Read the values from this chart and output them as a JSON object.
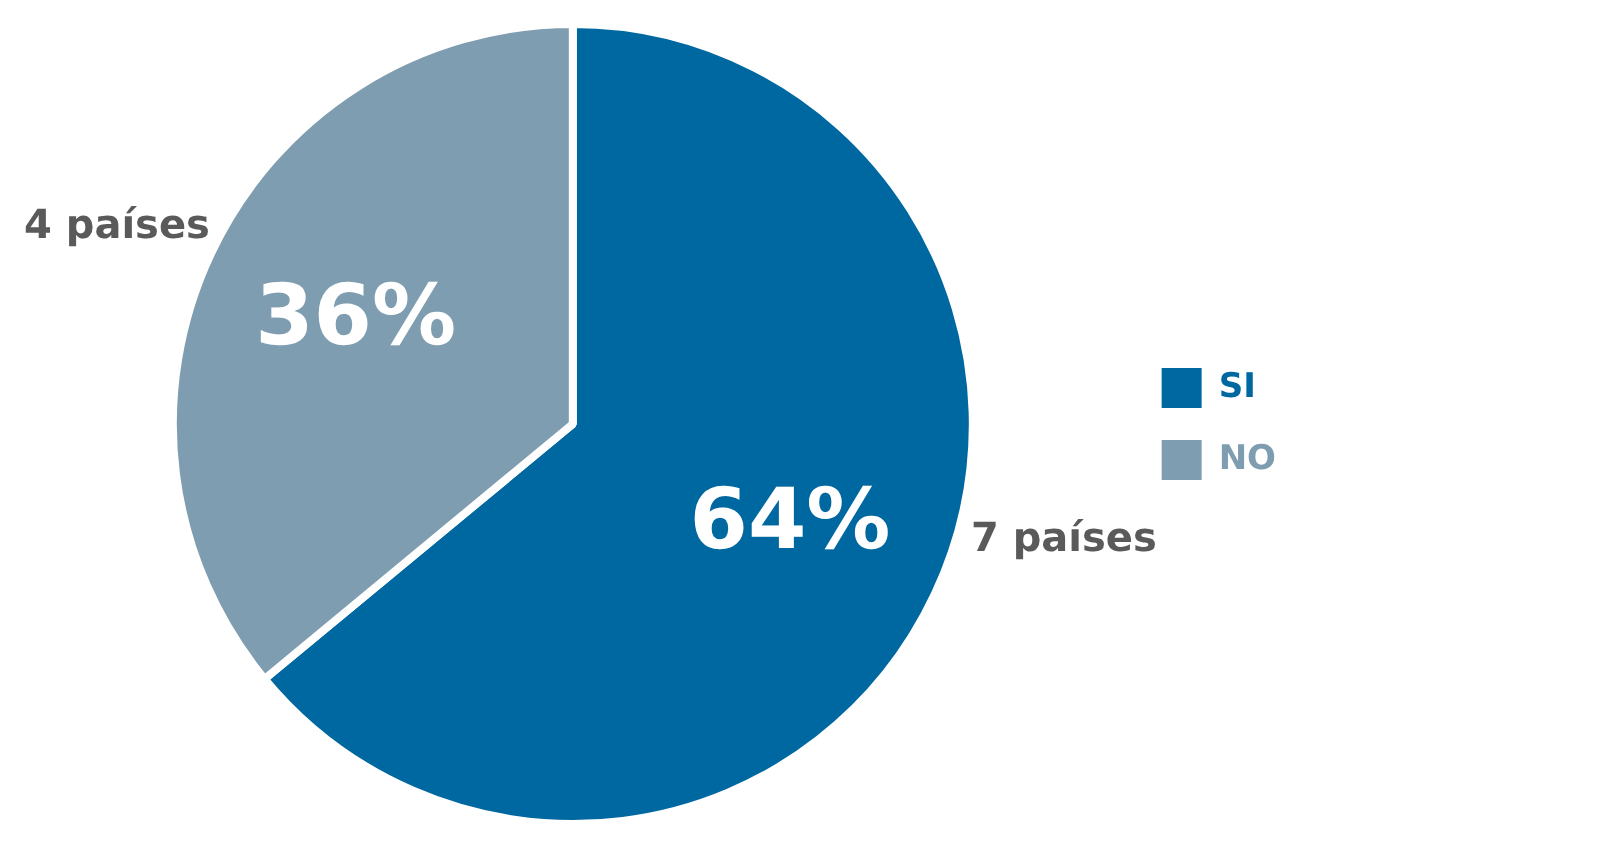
{
  "chart_data": {
    "type": "pie",
    "categories": [
      "SI",
      "NO"
    ],
    "values": [
      64,
      36
    ],
    "colors": [
      "#0068a0",
      "#7f9db0"
    ],
    "value_labels": [
      "64%",
      "36%"
    ],
    "annotations": [
      "7 países",
      "4 países"
    ],
    "legend": "right"
  }
}
